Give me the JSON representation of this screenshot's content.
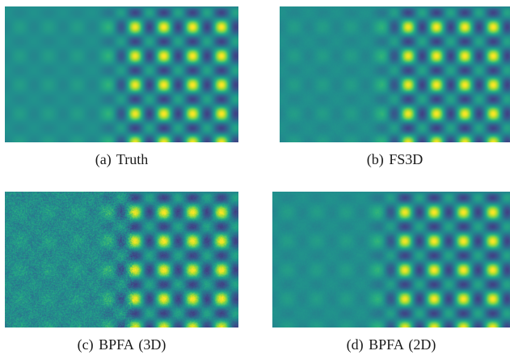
{
  "figure": {
    "panels": [
      {
        "id": "a",
        "caption": "(a)  Truth",
        "noise": 0.0,
        "blur": 0.0
      },
      {
        "id": "b",
        "caption": "(b)  FS3D",
        "noise": 0.02,
        "blur": 0.15
      },
      {
        "id": "c",
        "caption": "(c)  BPFA  (3D)",
        "noise": 0.22,
        "blur": 0.0
      },
      {
        "id": "d",
        "caption": "(d)  BPFA  (2D)",
        "noise": 0.03,
        "blur": 0.1
      }
    ],
    "colors": {
      "background": "#26908d",
      "low": "#440154",
      "high": "#fde725"
    }
  }
}
